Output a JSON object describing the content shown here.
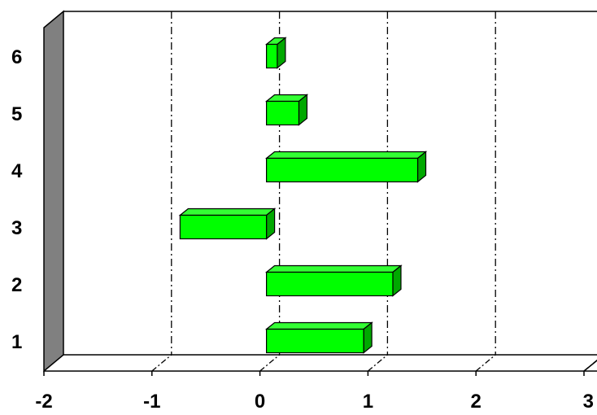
{
  "chart_data": {
    "type": "bar",
    "orientation": "horizontal",
    "style": "3d",
    "categories": [
      "1",
      "2",
      "3",
      "4",
      "5",
      "6"
    ],
    "values": [
      0.9,
      1.17,
      -0.8,
      1.4,
      0.3,
      0.1
    ],
    "title": "",
    "xlabel": "",
    "ylabel": "",
    "xlim": [
      -2,
      3
    ],
    "x_ticks": [
      "-2",
      "-1",
      "0",
      "1",
      "2",
      "3"
    ],
    "grid": "vertical dash-dot lines",
    "legend": "none",
    "colors": {
      "bar_face": "#00ff00",
      "bar_top": "#33ff33",
      "bar_side": "#00a800",
      "bar_edge": "#000000",
      "left_wall": "#808080",
      "background": "#ffffff"
    }
  }
}
